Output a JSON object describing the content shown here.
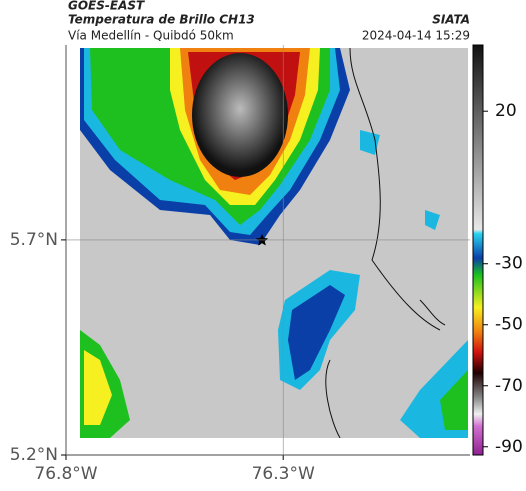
{
  "header": {
    "satellite": "GOES-EAST",
    "product": "Temperatura de Brillo CH13",
    "source": "SIATA",
    "route": "Vía Medellín - Quibdó 50km",
    "timestamp": "2024-04-14 15:29"
  },
  "map": {
    "xlim": [
      -76.8,
      -75.87
    ],
    "ylim": [
      5.2,
      6.153
    ],
    "xticks": [
      {
        "value": -76.8,
        "label": "76.8°W"
      },
      {
        "value": -76.3,
        "label": "76.3°W"
      }
    ],
    "yticks": [
      {
        "value": 5.7,
        "label": "5.7°N"
      },
      {
        "value": 5.2,
        "label": "5.2°N"
      }
    ]
  },
  "colorbar": {
    "lim": [
      -92.7,
      41.7
    ],
    "ticks": [
      20,
      -30,
      -50,
      -70,
      -90
    ]
  }
}
